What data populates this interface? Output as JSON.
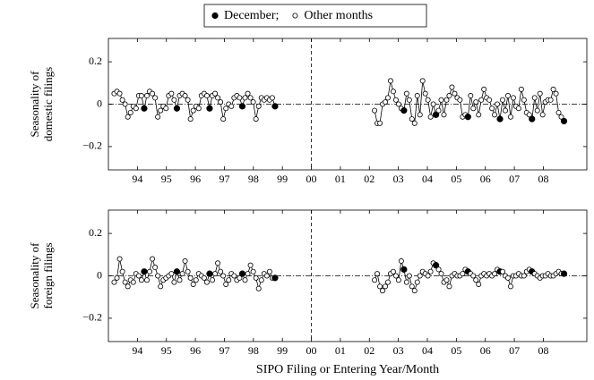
{
  "chart_data": [
    {
      "type": "line",
      "color": "#000000",
      "ylabel": [
        "Seasonality of",
        "domestic filings"
      ],
      "legend": [
        {
          "label": "December;",
          "filled": true
        },
        {
          "label": "Other months",
          "filled": false
        }
      ],
      "xlim": [
        1993,
        2009.5
      ],
      "ylim": [
        -0.31,
        0.31
      ],
      "xticks": [
        {
          "value": 1994,
          "label": "94"
        },
        {
          "value": 1995,
          "label": "95"
        },
        {
          "value": 1996,
          "label": "96"
        },
        {
          "value": 1997,
          "label": "97"
        },
        {
          "value": 1998,
          "label": "98"
        },
        {
          "value": 1999,
          "label": "99"
        },
        {
          "value": 2000,
          "label": "00"
        },
        {
          "value": 2001,
          "label": "01"
        },
        {
          "value": 2002,
          "label": "02"
        },
        {
          "value": 2003,
          "label": "03"
        },
        {
          "value": 2004,
          "label": "04"
        },
        {
          "value": 2005,
          "label": "05"
        },
        {
          "value": 2006,
          "label": "06"
        },
        {
          "value": 2007,
          "label": "07"
        },
        {
          "value": 2008,
          "label": "08"
        }
      ],
      "yticks": [
        0.2,
        0,
        {
          "value": -0.2,
          "label": "−0.2"
        }
      ],
      "reference_x": 2000,
      "reference_y": 0,
      "segments": [
        {
          "x": [
            1993.2,
            1993.294,
            1993.388,
            1993.482,
            1993.576,
            1993.67,
            1993.764,
            1993.858,
            1993.952,
            1994.046,
            1994.14,
            1994.234,
            1994.328,
            1994.422,
            1994.516,
            1994.61,
            1994.704,
            1994.798,
            1994.892,
            1994.986,
            1995.08,
            1995.174,
            1995.268,
            1995.362,
            1995.456,
            1995.55,
            1995.644,
            1995.738,
            1995.832,
            1995.926,
            1996.02,
            1996.114,
            1996.208,
            1996.302,
            1996.396,
            1996.49,
            1996.584,
            1996.678,
            1996.772,
            1996.866,
            1996.96,
            1997.054,
            1997.148,
            1997.242,
            1997.336,
            1997.43,
            1997.524,
            1997.618,
            1997.712,
            1997.806,
            1997.9,
            1997.994,
            1998.088,
            1998.182,
            1998.276,
            1998.37,
            1998.464,
            1998.558,
            1998.652,
            1998.746
          ],
          "values": [
            0.05,
            0.06,
            0.05,
            0.02,
            0.0,
            -0.06,
            -0.04,
            -0.01,
            -0.02,
            0.04,
            0.04,
            -0.02,
            0.04,
            0.06,
            0.05,
            0.03,
            -0.06,
            -0.03,
            -0.01,
            -0.02,
            0.04,
            0.05,
            0.02,
            -0.02,
            0.04,
            0.05,
            0.04,
            0.02,
            -0.07,
            -0.03,
            -0.01,
            -0.02,
            0.04,
            0.05,
            0.04,
            -0.02,
            0.04,
            0.05,
            0.03,
            0.01,
            -0.07,
            -0.02,
            0.0,
            -0.01,
            0.03,
            0.04,
            0.03,
            -0.01,
            0.03,
            0.05,
            0.03,
            0.01,
            -0.07,
            -0.01,
            0.03,
            0.02,
            0.03,
            0.02,
            0.03,
            -0.01
          ]
        },
        {
          "x": [
            2002.18,
            2002.272,
            2002.364,
            2002.456,
            2002.548,
            2002.64,
            2002.732,
            2002.824,
            2002.916,
            2003.008,
            2003.1,
            2003.192,
            2003.284,
            2003.376,
            2003.468,
            2003.56,
            2003.652,
            2003.744,
            2003.836,
            2003.928,
            2004.02,
            2004.112,
            2004.204,
            2004.296,
            2004.388,
            2004.48,
            2004.572,
            2004.664,
            2004.756,
            2004.848,
            2004.94,
            2005.032,
            2005.124,
            2005.216,
            2005.308,
            2005.4,
            2005.492,
            2005.584,
            2005.676,
            2005.768,
            2005.86,
            2005.952,
            2006.044,
            2006.136,
            2006.228,
            2006.32,
            2006.412,
            2006.504,
            2006.596,
            2006.688,
            2006.78,
            2006.872,
            2006.964,
            2007.056,
            2007.148,
            2007.24,
            2007.332,
            2007.424,
            2007.516,
            2007.608,
            2007.7,
            2007.792,
            2007.884,
            2007.976,
            2008.068,
            2008.16,
            2008.252,
            2008.344,
            2008.436,
            2008.528,
            2008.62,
            2008.712
          ],
          "values": [
            -0.03,
            -0.09,
            -0.09,
            0.0,
            0.01,
            0.03,
            0.11,
            0.06,
            0.02,
            0.0,
            -0.02,
            -0.03,
            0.05,
            0.02,
            -0.07,
            -0.09,
            0.04,
            -0.05,
            0.11,
            0.05,
            0.02,
            -0.06,
            0.0,
            -0.05,
            -0.03,
            0.02,
            -0.05,
            0.02,
            0.04,
            0.08,
            0.05,
            0.03,
            0.02,
            -0.06,
            -0.05,
            -0.06,
            0.04,
            -0.02,
            0.01,
            -0.05,
            0.02,
            0.07,
            0.03,
            0.02,
            -0.02,
            -0.05,
            0.0,
            -0.07,
            0.02,
            -0.03,
            0.04,
            -0.06,
            0.03,
            -0.01,
            -0.02,
            0.07,
            0.02,
            -0.04,
            -0.05,
            -0.07,
            0.03,
            -0.03,
            0.05,
            -0.05,
            0.01,
            0.02,
            0.02,
            0.07,
            0.05,
            -0.04,
            -0.06,
            -0.08
          ]
        }
      ]
    },
    {
      "type": "line",
      "color": "#000000",
      "ylabel": [
        "Seasonality of",
        "foreign filings"
      ],
      "xlabel": "SIPO Filing or Entering Year/Month",
      "xlim": [
        1993,
        2009.5
      ],
      "ylim": [
        -0.31,
        0.31
      ],
      "xticks": [
        {
          "value": 1994,
          "label": "94"
        },
        {
          "value": 1995,
          "label": "95"
        },
        {
          "value": 1996,
          "label": "96"
        },
        {
          "value": 1997,
          "label": "97"
        },
        {
          "value": 1998,
          "label": "98"
        },
        {
          "value": 1999,
          "label": "99"
        },
        {
          "value": 2000,
          "label": "00"
        },
        {
          "value": 2001,
          "label": "01"
        },
        {
          "value": 2002,
          "label": "02"
        },
        {
          "value": 2003,
          "label": "03"
        },
        {
          "value": 2004,
          "label": "04"
        },
        {
          "value": 2005,
          "label": "05"
        },
        {
          "value": 2006,
          "label": "06"
        },
        {
          "value": 2007,
          "label": "07"
        },
        {
          "value": 2008,
          "label": "08"
        }
      ],
      "yticks": [
        0.2,
        0,
        {
          "value": -0.2,
          "label": "−0.2"
        }
      ],
      "reference_x": 2000,
      "reference_y": 0,
      "segments": [
        {
          "x": [
            1993.2,
            1993.294,
            1993.388,
            1993.482,
            1993.576,
            1993.67,
            1993.764,
            1993.858,
            1993.952,
            1994.046,
            1994.14,
            1994.234,
            1994.328,
            1994.422,
            1994.516,
            1994.61,
            1994.704,
            1994.798,
            1994.892,
            1994.986,
            1995.08,
            1995.174,
            1995.268,
            1995.362,
            1995.456,
            1995.55,
            1995.644,
            1995.738,
            1995.832,
            1995.926,
            1996.02,
            1996.114,
            1996.208,
            1996.302,
            1996.396,
            1996.49,
            1996.584,
            1996.678,
            1996.772,
            1996.866,
            1996.96,
            1997.054,
            1997.148,
            1997.242,
            1997.336,
            1997.43,
            1997.524,
            1997.618,
            1997.712,
            1997.806,
            1997.9,
            1997.994,
            1998.088,
            1998.182,
            1998.276,
            1998.37,
            1998.464,
            1998.558,
            1998.652,
            1998.746
          ],
          "values": [
            -0.03,
            -0.01,
            0.08,
            0.02,
            -0.03,
            -0.05,
            -0.02,
            -0.03,
            0.01,
            0.0,
            -0.02,
            0.02,
            -0.02,
            0.02,
            0.08,
            0.04,
            0.0,
            -0.05,
            -0.02,
            -0.01,
            0.0,
            0.01,
            -0.03,
            0.02,
            -0.02,
            0.01,
            0.07,
            0.02,
            -0.01,
            -0.04,
            -0.02,
            0.01,
            0.0,
            -0.01,
            -0.03,
            0.01,
            -0.02,
            0.01,
            0.06,
            0.02,
            0.0,
            -0.04,
            -0.02,
            0.01,
            0.0,
            -0.02,
            -0.01,
            0.01,
            -0.02,
            0.01,
            0.05,
            0.02,
            -0.01,
            -0.06,
            -0.02,
            0.01,
            0.0,
            0.02,
            -0.01,
            -0.01
          ]
        },
        {
          "x": [
            2002.18,
            2002.272,
            2002.364,
            2002.456,
            2002.548,
            2002.64,
            2002.732,
            2002.824,
            2002.916,
            2003.008,
            2003.1,
            2003.192,
            2003.284,
            2003.376,
            2003.468,
            2003.56,
            2003.652,
            2003.744,
            2003.836,
            2003.928,
            2004.02,
            2004.112,
            2004.204,
            2004.296,
            2004.388,
            2004.48,
            2004.572,
            2004.664,
            2004.756,
            2004.848,
            2004.94,
            2005.032,
            2005.124,
            2005.216,
            2005.308,
            2005.4,
            2005.492,
            2005.584,
            2005.676,
            2005.768,
            2005.86,
            2005.952,
            2006.044,
            2006.136,
            2006.228,
            2006.32,
            2006.412,
            2006.504,
            2006.596,
            2006.688,
            2006.78,
            2006.872,
            2006.964,
            2007.056,
            2007.148,
            2007.24,
            2007.332,
            2007.424,
            2007.516,
            2007.608,
            2007.7,
            2007.792,
            2007.884,
            2007.976,
            2008.068,
            2008.16,
            2008.252,
            2008.344,
            2008.436,
            2008.528,
            2008.62,
            2008.712
          ],
          "values": [
            -0.02,
            0.01,
            -0.05,
            -0.07,
            -0.05,
            -0.03,
            0.01,
            0.02,
            0.0,
            -0.02,
            0.07,
            0.03,
            -0.03,
            0.0,
            -0.05,
            -0.07,
            -0.03,
            0.0,
            0.02,
            0.01,
            0.0,
            0.02,
            0.06,
            0.05,
            0.03,
            0.01,
            -0.03,
            -0.02,
            -0.05,
            0.0,
            0.01,
            0.0,
            0.0,
            0.01,
            0.03,
            0.02,
            0.01,
            0.0,
            -0.02,
            -0.04,
            0.0,
            0.01,
            0.0,
            0.01,
            0.0,
            0.01,
            0.03,
            0.02,
            0.02,
            0.0,
            -0.01,
            -0.05,
            0.0,
            0.0,
            0.01,
            0.0,
            0.0,
            0.02,
            0.03,
            0.02,
            0.01,
            0.0,
            -0.01,
            0.0,
            0.0,
            0.01,
            0.0,
            0.0,
            0.01,
            0.02,
            0.01,
            0.01
          ]
        }
      ]
    }
  ]
}
